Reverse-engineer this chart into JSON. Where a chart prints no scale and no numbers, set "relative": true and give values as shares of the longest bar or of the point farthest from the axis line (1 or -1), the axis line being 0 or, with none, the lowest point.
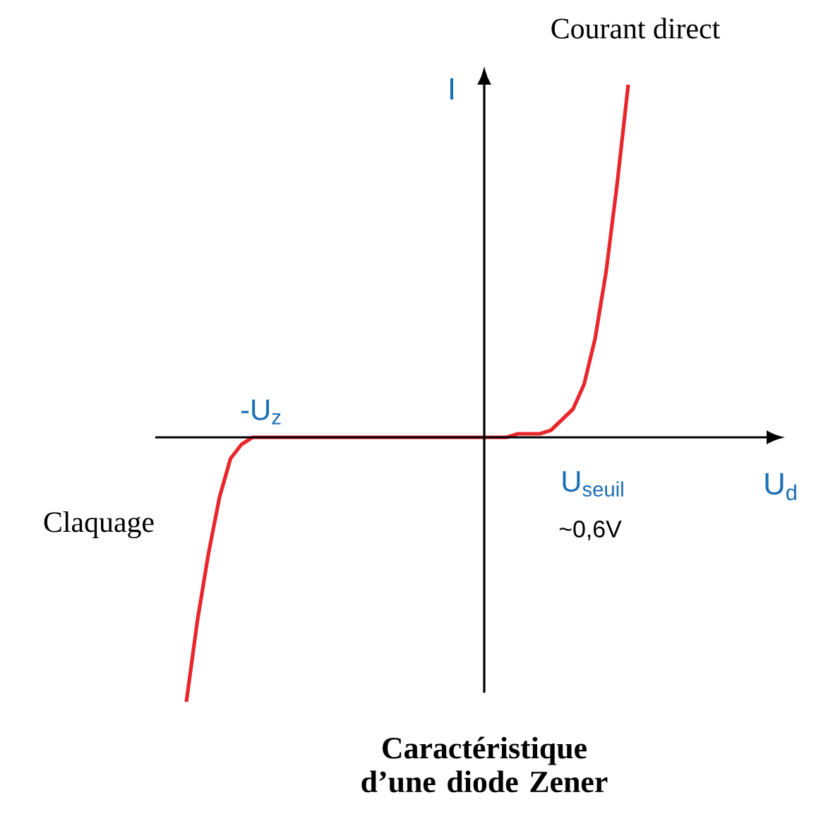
{
  "chart_data": {
    "type": "line",
    "title": "Caractéristique d’une diode Zener",
    "xlabel": "U$_{d}$",
    "ylabel": "I",
    "relative": true,
    "categories": [
      null,
      null,
      null,
      null,
      null,
      null,
      null,
      null,
      null,
      null,
      null,
      null,
      null,
      null,
      null,
      null,
      null,
      null,
      null,
      null,
      null,
      null,
      null,
      null,
      null,
      null,
      null,
      null,
      null,
      null,
      null,
      null,
      null,
      null,
      null,
      null,
      null,
      null,
      null,
      null,
      null
    ],
    "series": [
      {
        "color": "#e8262b",
        "values": [
          -0.75,
          -0.52,
          -0.33,
          -0.17,
          -0.06,
          -0.02,
          0,
          0,
          0,
          0,
          0,
          0,
          0,
          0,
          0,
          0,
          0,
          0,
          0,
          0,
          0,
          0,
          0,
          0,
          0,
          0,
          0,
          0,
          0,
          0,
          0.01,
          0.01,
          0.01,
          0.02,
          0.05,
          0.08,
          0.15,
          0.28,
          0.47,
          0.72,
          1
        ]
      }
    ],
    "annotations": [
      "Courant direct",
      "-U$_{z}$",
      "U$_{seuil}$",
      "~0,6V",
      "Claquage"
    ]
  }
}
